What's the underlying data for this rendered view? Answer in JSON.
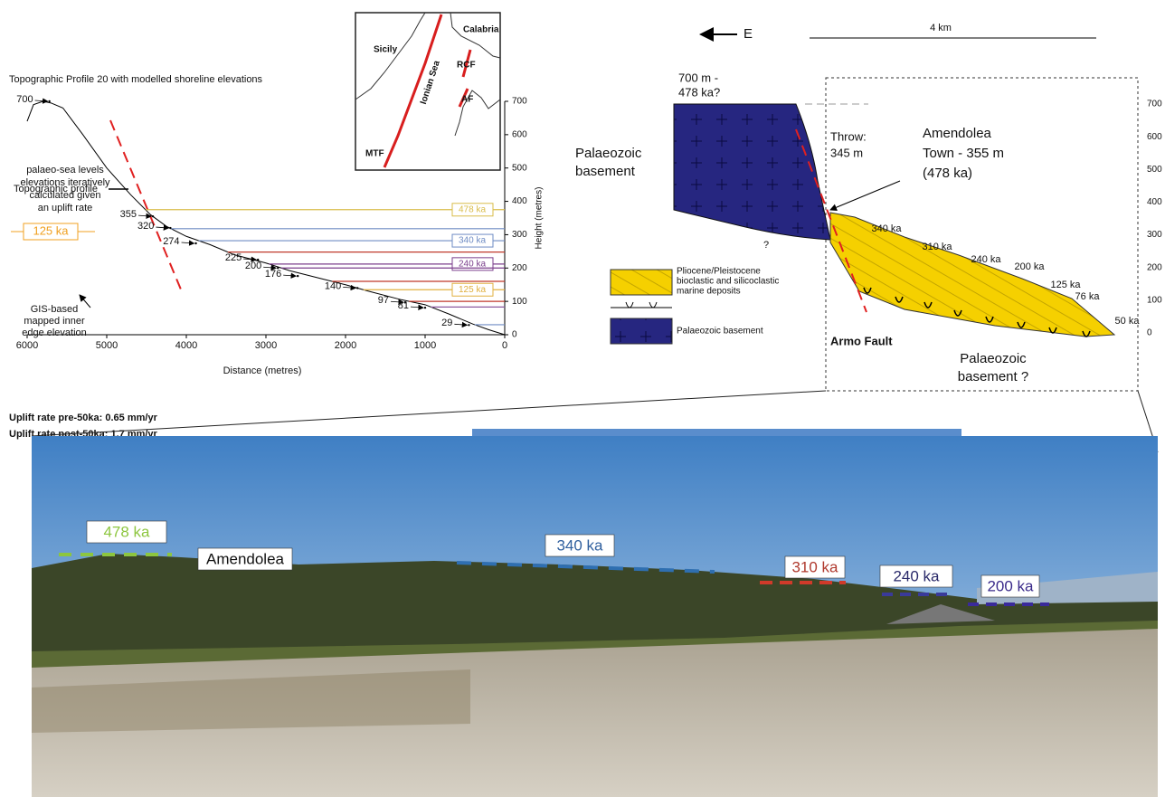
{
  "chart_data": {
    "type": "line",
    "title": "Topographic Profile 20 with modelled shoreline elevations",
    "x_label": "Distance (metres)",
    "y_label": "Height (metres)",
    "xlim": [
      6000,
      0
    ],
    "xticks": [
      6000,
      5000,
      4000,
      3000,
      2000,
      1000,
      0
    ],
    "ylim": [
      0,
      700
    ],
    "yticks": [
      0,
      100,
      200,
      300,
      400,
      500,
      600,
      700
    ],
    "series": [
      {
        "name": "Topographic profile",
        "color": "#000000",
        "x": [
          6000,
          5920,
          5800,
          5700,
          5550,
          5300,
          5000,
          4700,
          4450,
          4250,
          4000,
          3700,
          3400,
          3000,
          2700,
          2300,
          2000,
          1700,
          1300,
          1000,
          700,
          400,
          200,
          0
        ],
        "values": [
          640,
          690,
          700,
          695,
          680,
          600,
          500,
          420,
          360,
          325,
          295,
          270,
          240,
          215,
          192,
          168,
          150,
          130,
          105,
          90,
          62,
          32,
          15,
          0
        ]
      }
    ],
    "shorelines": [
      {
        "value": 375,
        "color": "#d9bc4a",
        "label": "478 ka"
      },
      {
        "value": 318,
        "color": "#6f8cc4"
      },
      {
        "value": 282,
        "color": "#6f8cc4",
        "label": "340 ka"
      },
      {
        "value": 248,
        "color": "#c0392b"
      },
      {
        "value": 212,
        "color": "#7b3f8c",
        "label": "240 ka"
      },
      {
        "value": 200,
        "color": "#7b3f8c"
      },
      {
        "value": 160,
        "color": "#c0392b"
      },
      {
        "value": 135,
        "color": "#e0b040",
        "label": "125 ka"
      },
      {
        "value": 100,
        "color": "#c0392b"
      },
      {
        "value": 83,
        "color": "#8c5aa0"
      },
      {
        "value": 30,
        "color": "#6f8cc4"
      }
    ],
    "inner_edges": {
      "x": [
        5720,
        4420,
        4200,
        3880,
        3100,
        2850,
        2600,
        1850,
        1250,
        1000,
        450
      ],
      "values": [
        700,
        355,
        320,
        274,
        225,
        200,
        176,
        140,
        97,
        81,
        29
      ]
    }
  },
  "profile_notes": {
    "sea_levels": [
      "palaeo-sea levels",
      "elevations iteratively",
      "calculated given",
      "an uplift rate"
    ],
    "sea_level_example": "125 ka",
    "gis_legend": [
      "GIS-based",
      "mapped inner",
      "edge elevation"
    ],
    "uplift": [
      "Uplift rate pre-50ka: 0.65 mm/yr",
      "Uplift rate post-50ka: 1.7 mm/yr"
    ]
  },
  "map": {
    "labels": [
      "Sicily",
      "Calabria",
      "Ionian Sea",
      "MTF",
      "RCF",
      "AF"
    ]
  },
  "cross_section": {
    "direction": "E",
    "scale": "4 km",
    "summit": [
      "700 m -",
      "478 ka?"
    ],
    "basement": [
      "Palaeozoic",
      "basement"
    ],
    "unknown": "?",
    "throw": [
      "Throw:",
      "345 m"
    ],
    "town": [
      "Amendolea",
      "Town - 355 m",
      "(478 ka)"
    ],
    "terraces": [
      "340 ka",
      "310 ka",
      "240 ka",
      "200 ka",
      "125 ka",
      "76 ka",
      "50 ka"
    ],
    "fault": "Armo Fault",
    "basement_lower": [
      "Palaeozoic",
      "basement ?"
    ],
    "axis_ticks": [
      700,
      600,
      500,
      400,
      300,
      200,
      100,
      0
    ]
  },
  "legend": {
    "deposits": [
      "Pliocene/Pleistocene",
      "bioclastic and silicoclastic",
      "marine deposits"
    ],
    "basement": "Palaeozoic basement"
  },
  "photo": {
    "labels": [
      "478 ka",
      "Amendolea",
      "340 ka",
      "310 ka",
      "240 ka",
      "200 ka"
    ],
    "colors": [
      "#8dc63f",
      "#111111",
      "#2f5f9e",
      "#b03a2e",
      "#2a2a6a",
      "#3a2a8a"
    ]
  }
}
